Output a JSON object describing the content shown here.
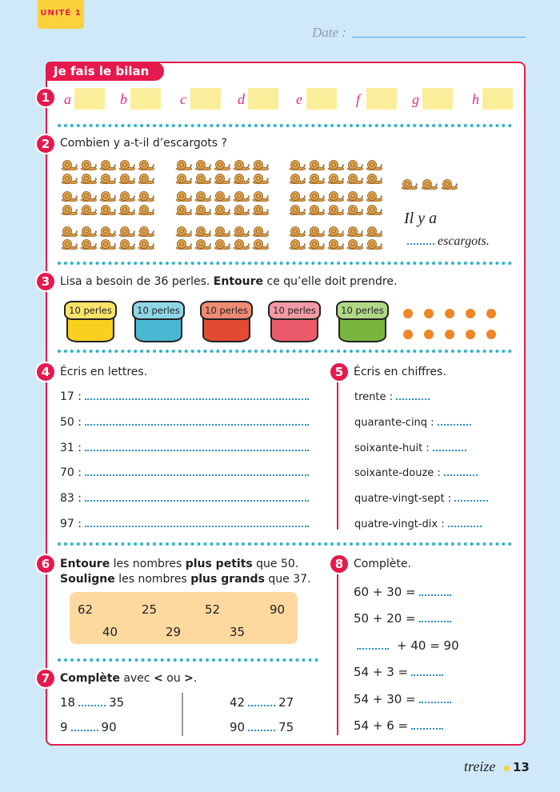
{
  "header": {
    "unit": "UNITÉ 1",
    "date_label": "Date :"
  },
  "section_title": "Je fais le bilan",
  "ex1": {
    "number": "1",
    "letters": [
      "a",
      "b",
      "c",
      "d",
      "e",
      "f",
      "g",
      "h"
    ]
  },
  "ex2": {
    "number": "2",
    "prompt": "Combien y a-t-il d’escargots ?",
    "answer_start": "Il y a",
    "answer_end": "escargots."
  },
  "ex3": {
    "number": "3",
    "prompt": [
      "Lisa a besoin de 36 perles. ",
      "Entoure",
      " ce qu’elle doit prendre."
    ],
    "pot_label": "10 perles"
  },
  "ex4": {
    "number": "4",
    "title": "Écris en lettres.",
    "items": [
      "17 :",
      "50 :",
      "31 :",
      "70 :",
      "83 :",
      "97 :"
    ]
  },
  "ex5": {
    "number": "5",
    "title": "Écris en chiffres.",
    "items": [
      "trente :",
      "quarante-cinq :",
      "soixante-huit :",
      "soixante-douze :",
      "quatre-vingt-sept :",
      "quatre-vingt-dix :"
    ]
  },
  "ex6": {
    "number": "6",
    "line1": [
      "Entoure",
      " les nombres ",
      "plus petits",
      " que 50."
    ],
    "line2": [
      "Souligne",
      " les nombres ",
      "plus grands",
      " que 37."
    ],
    "numbers": [
      "62",
      "25",
      "52",
      "90",
      "40",
      "29",
      "35"
    ]
  },
  "ex7": {
    "number": "7",
    "prompt": [
      "Complète",
      " avec ",
      "<",
      " ou ",
      ">",
      "."
    ],
    "rows": [
      [
        "18",
        "35"
      ],
      [
        "9",
        "90"
      ],
      [
        "42",
        "27"
      ],
      [
        "90",
        "75"
      ]
    ]
  },
  "ex8": {
    "number": "8",
    "title": "Complète.",
    "equations": [
      {
        "text": "60 + 30 ="
      },
      {
        "text": "50 + 20 ="
      },
      {
        "text": "+ 40 = 90",
        "blank_first": true
      },
      {
        "text": "54 + 3 ="
      },
      {
        "text": "54 + 30 ="
      },
      {
        "text": "54 + 6 ="
      }
    ]
  },
  "footer": {
    "word": "treize",
    "page": "13"
  }
}
